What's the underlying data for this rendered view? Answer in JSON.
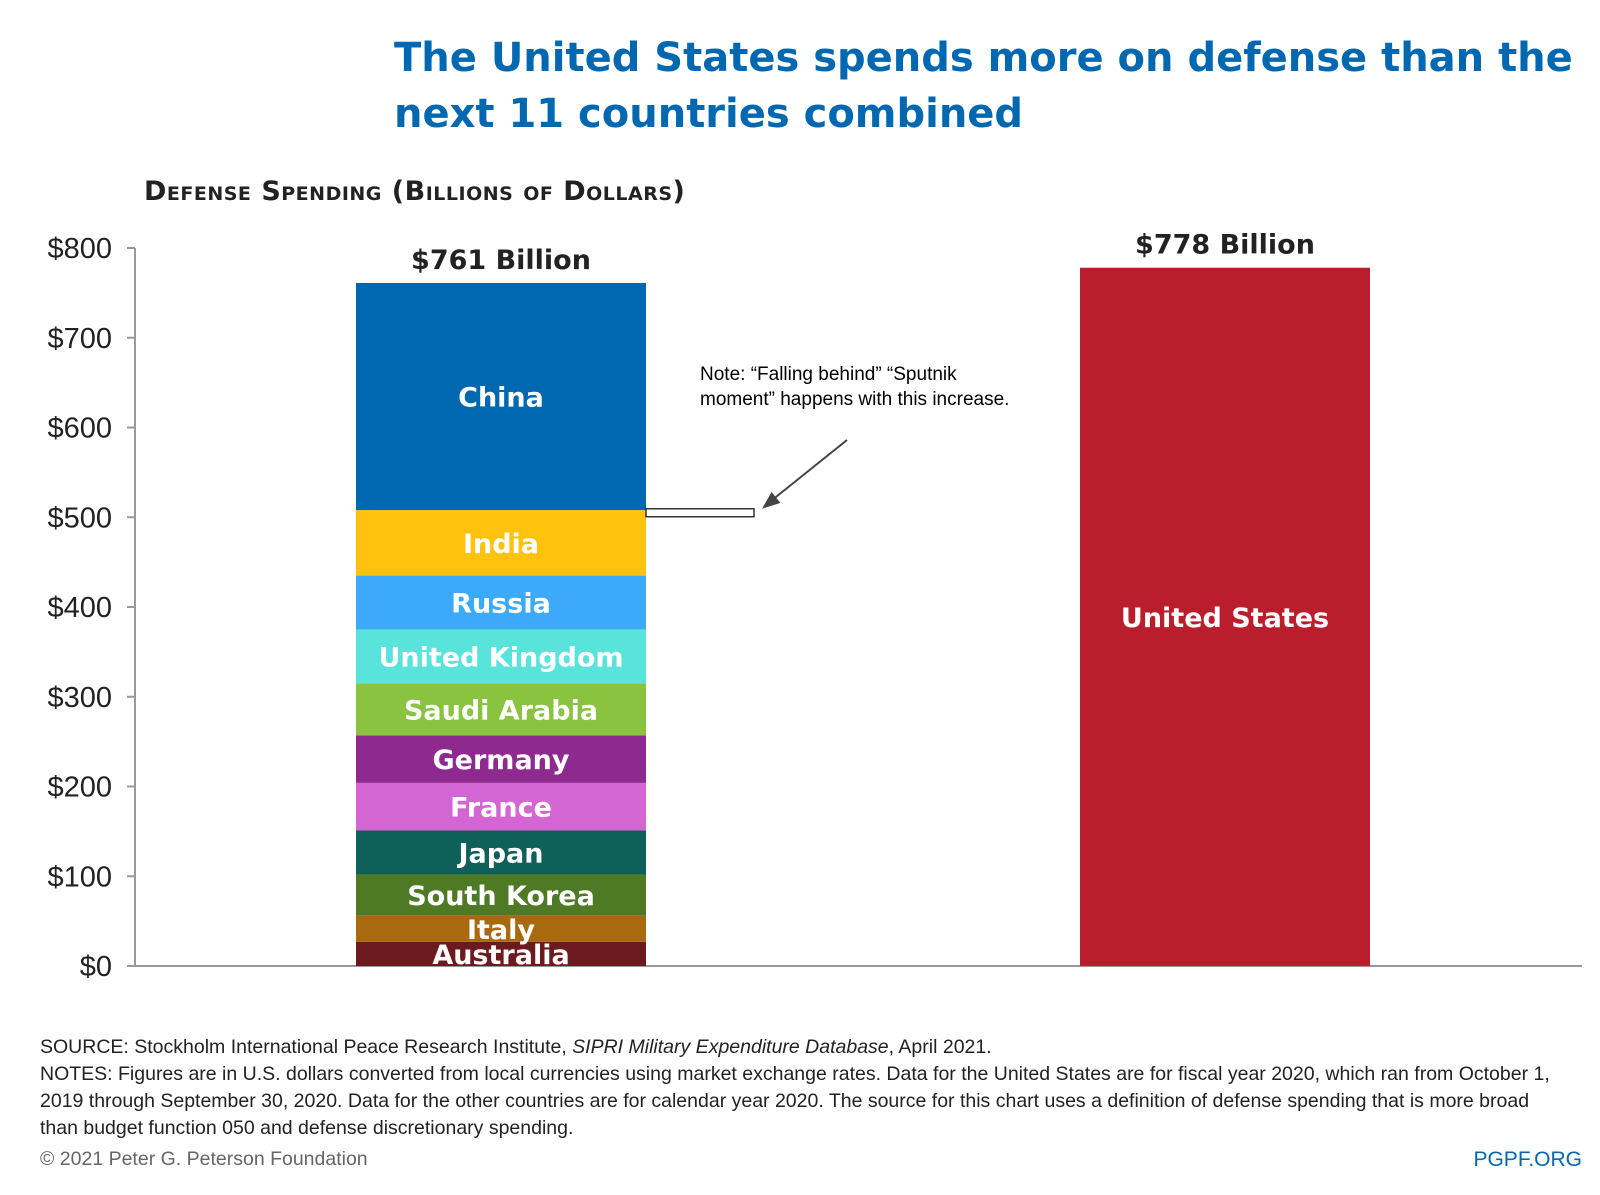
{
  "title": "The United States spends more on defense than the next 11 countries combined",
  "subtitle": "Defense Spending (Billions of Dollars)",
  "note": "Note: “Falling behind” “Sputnik moment” happens with this increase.",
  "source": {
    "prefix": "SOURCE: Stockholm International Peace Research Institute, ",
    "italic": "SIPRI Military Expenditure Database",
    "suffix": ", April 2021."
  },
  "notes_text": "NOTES: Figures are in U.S. dollars converted from local currencies using market exchange rates. Data for the United States are for fiscal year 2020, which ran from October 1, 2019 through September 30, 2020. Data for the other countries are for calendar year 2020. The source for this chart uses a definition of defense spending that is more broad than budget function 050 and defense discretionary spending.",
  "copyright": "© 2021 Peter G. Peterson Foundation",
  "site": "PGPF.ORG",
  "chart_data": {
    "type": "bar",
    "stacked": true,
    "ylim": [
      0,
      800
    ],
    "yticks": [
      0,
      100,
      200,
      300,
      400,
      500,
      600,
      700,
      800
    ],
    "ytick_labels": [
      "$0",
      "$100",
      "$200",
      "$300",
      "$400",
      "$500",
      "$600",
      "$700",
      "$800"
    ],
    "bars": [
      {
        "total_label": "$761 Billion",
        "total": 761,
        "segments": [
          {
            "name": "Australia",
            "value": 27,
            "color": "#6B1A1F"
          },
          {
            "name": "Italy",
            "value": 29,
            "color": "#A9690E"
          },
          {
            "name": "South Korea",
            "value": 46,
            "color": "#4E7A26"
          },
          {
            "name": "Japan",
            "value": 49,
            "color": "#0E6058"
          },
          {
            "name": "France",
            "value": 53,
            "color": "#D366D2"
          },
          {
            "name": "Germany",
            "value": 53,
            "color": "#8E2A8F"
          },
          {
            "name": "Saudi Arabia",
            "value": 58,
            "color": "#8AC33F"
          },
          {
            "name": "United Kingdom",
            "value": 60,
            "color": "#58E3DB"
          },
          {
            "name": "Russia",
            "value": 60,
            "color": "#3DAAF9"
          },
          {
            "name": "India",
            "value": 73,
            "color": "#FFC20E"
          },
          {
            "name": "China",
            "value": 253,
            "color": "#0068B1"
          }
        ]
      },
      {
        "total_label": "$778 Billion",
        "total": 778,
        "segments": [
          {
            "name": "United States",
            "value": 778,
            "color": "#BA1E2C"
          }
        ]
      }
    ],
    "callout_at_value": 505
  }
}
